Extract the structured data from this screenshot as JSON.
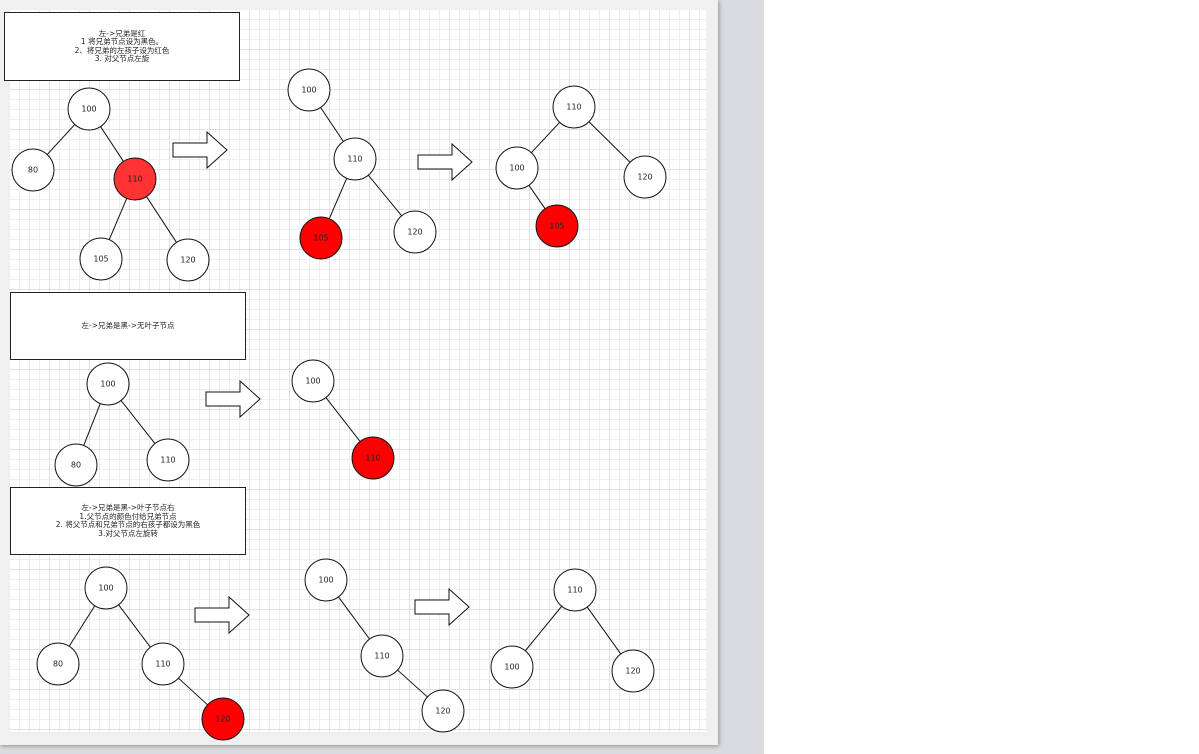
{
  "notes": [
    {
      "lines": [
        "左->兄弟是红",
        "1 将兄弟节点设为黑色。",
        "2、将兄弟的左孩子设为红色",
        "3. 对父节点左旋"
      ]
    },
    {
      "lines": [
        "左->兄弟是黑->无叶子节点"
      ]
    },
    {
      "lines": [
        "左->兄弟是黑->叶子节点右",
        "1.父节点的颜色付给兄弟节点",
        "2. 将父节点和兄弟节点的右孩子都设为黑色",
        "3.对父节点左旋转"
      ]
    }
  ],
  "colors": {
    "red_node": "#ff0000",
    "red_node_light": "#ff3333",
    "white_node": "#ffffff",
    "line": "#111111"
  },
  "nodes": [
    {
      "id": "a1-100",
      "label": "100",
      "color": "white"
    },
    {
      "id": "a1-80",
      "label": "80",
      "color": "white"
    },
    {
      "id": "a1-110",
      "label": "110",
      "color": "red_light"
    },
    {
      "id": "a1-105",
      "label": "105",
      "color": "white"
    },
    {
      "id": "a1-120",
      "label": "120",
      "color": "white"
    },
    {
      "id": "a2-100",
      "label": "100",
      "color": "white"
    },
    {
      "id": "a2-110",
      "label": "110",
      "color": "white"
    },
    {
      "id": "a2-105",
      "label": "105",
      "color": "red"
    },
    {
      "id": "a2-120",
      "label": "120",
      "color": "white"
    },
    {
      "id": "a3-110",
      "label": "110",
      "color": "white"
    },
    {
      "id": "a3-100",
      "label": "100",
      "color": "white"
    },
    {
      "id": "a3-120",
      "label": "120",
      "color": "white"
    },
    {
      "id": "a3-105",
      "label": "105",
      "color": "red"
    },
    {
      "id": "b1-100",
      "label": "100",
      "color": "white"
    },
    {
      "id": "b1-80",
      "label": "80",
      "color": "white"
    },
    {
      "id": "b1-110",
      "label": "110",
      "color": "white"
    },
    {
      "id": "b2-100",
      "label": "100",
      "color": "white"
    },
    {
      "id": "b2-110",
      "label": "110",
      "color": "red"
    },
    {
      "id": "c1-100",
      "label": "100",
      "color": "white"
    },
    {
      "id": "c1-80",
      "label": "80",
      "color": "white"
    },
    {
      "id": "c1-110",
      "label": "110",
      "color": "white"
    },
    {
      "id": "c1-120",
      "label": "120",
      "color": "red"
    },
    {
      "id": "c2-100",
      "label": "100",
      "color": "white"
    },
    {
      "id": "c2-110",
      "label": "110",
      "color": "white"
    },
    {
      "id": "c2-120",
      "label": "120",
      "color": "white"
    },
    {
      "id": "c3-110",
      "label": "110",
      "color": "white"
    },
    {
      "id": "c3-100",
      "label": "100",
      "color": "white"
    },
    {
      "id": "c3-120",
      "label": "120",
      "color": "white"
    }
  ],
  "edges": [
    [
      "a1-100",
      "a1-80"
    ],
    [
      "a1-100",
      "a1-110"
    ],
    [
      "a1-110",
      "a1-105"
    ],
    [
      "a1-110",
      "a1-120"
    ],
    [
      "a2-100",
      "a2-110"
    ],
    [
      "a2-110",
      "a2-105"
    ],
    [
      "a2-110",
      "a2-120"
    ],
    [
      "a3-110",
      "a3-100"
    ],
    [
      "a3-110",
      "a3-120"
    ],
    [
      "a3-100",
      "a3-105"
    ],
    [
      "b1-100",
      "b1-80"
    ],
    [
      "b1-100",
      "b1-110"
    ],
    [
      "b2-100",
      "b2-110"
    ],
    [
      "c1-100",
      "c1-80"
    ],
    [
      "c1-100",
      "c1-110"
    ],
    [
      "c1-110",
      "c1-120"
    ],
    [
      "c2-100",
      "c2-110"
    ],
    [
      "c2-110",
      "c2-120"
    ],
    [
      "c3-110",
      "c3-100"
    ],
    [
      "c3-110",
      "c3-120"
    ]
  ]
}
